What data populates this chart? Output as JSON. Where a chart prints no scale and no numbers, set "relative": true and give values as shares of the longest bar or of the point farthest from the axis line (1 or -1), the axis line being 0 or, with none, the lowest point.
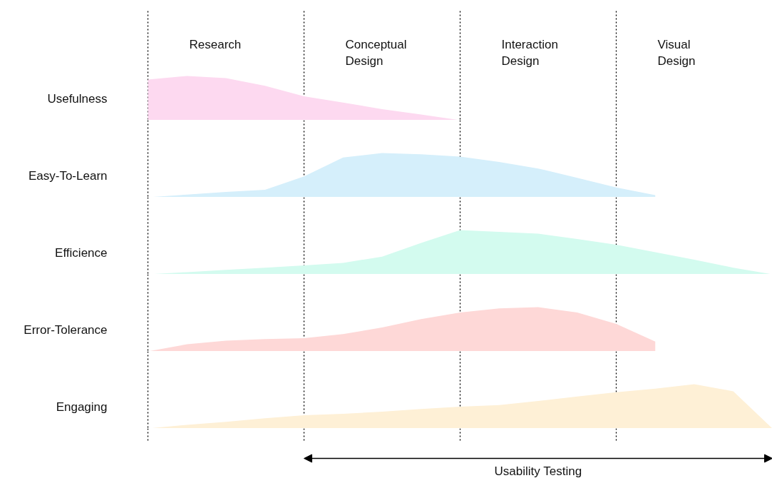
{
  "chart_data": [
    {
      "type": "area",
      "relative": true,
      "ylabel": "Usefulness",
      "grid": "x",
      "categories": [
        null,
        null,
        null,
        null,
        null,
        null,
        null,
        null,
        null,
        null,
        null,
        null,
        null,
        null,
        null,
        null,
        null
      ],
      "values": [
        0.92,
        1.0,
        0.95,
        0.78,
        0.54,
        0.4,
        0.25,
        0.13,
        0,
        null,
        null,
        null,
        null,
        null,
        null,
        null,
        null
      ],
      "color": "#fdd9f0",
      "annotations": [
        "Research",
        "Conceptual\nDesign",
        "Interaction\nDesign",
        "Visual\nDesign"
      ]
    },
    {
      "type": "area",
      "relative": true,
      "ylabel": "Easy-To-Learn",
      "grid": "x",
      "categories": [
        null,
        null,
        null,
        null,
        null,
        null,
        null,
        null,
        null,
        null,
        null,
        null,
        null,
        null,
        null,
        null,
        null
      ],
      "values": [
        0,
        0.06,
        0.12,
        0.17,
        0.47,
        0.9,
        1.0,
        0.97,
        0.92,
        0.8,
        0.65,
        0.44,
        0.22,
        0.05,
        null,
        null,
        null
      ],
      "color": "#d5effb"
    },
    {
      "type": "area",
      "relative": true,
      "ylabel": "Efficience",
      "grid": "x",
      "categories": [
        null,
        null,
        null,
        null,
        null,
        null,
        null,
        null,
        null,
        null,
        null,
        null,
        null,
        null,
        null,
        null,
        null
      ],
      "values": [
        0,
        0.05,
        0.1,
        0.15,
        0.2,
        0.26,
        0.4,
        0.71,
        1.0,
        0.96,
        0.92,
        0.8,
        0.67,
        0.5,
        0.33,
        0.15,
        0
      ],
      "color": "#d3fbef"
    },
    {
      "type": "area",
      "relative": true,
      "ylabel": "Error-Tolerance",
      "grid": "x",
      "categories": [
        null,
        null,
        null,
        null,
        null,
        null,
        null,
        null,
        null,
        null,
        null,
        null,
        null,
        null,
        null,
        null,
        null
      ],
      "values": [
        0,
        0.16,
        0.24,
        0.28,
        0.3,
        0.39,
        0.54,
        0.73,
        0.88,
        0.97,
        1.0,
        0.88,
        0.62,
        0.22,
        null,
        null,
        null
      ],
      "color": "#fed8d7"
    },
    {
      "type": "area",
      "relative": true,
      "ylabel": "Engaging",
      "grid": "x",
      "categories": [
        null,
        null,
        null,
        null,
        null,
        null,
        null,
        null,
        null,
        null,
        null,
        null,
        null,
        null,
        null,
        null,
        null
      ],
      "values": [
        0,
        0.08,
        0.15,
        0.23,
        0.3,
        0.33,
        0.38,
        0.44,
        0.49,
        0.53,
        0.62,
        0.72,
        0.82,
        0.9,
        1.0,
        0.84,
        0
      ],
      "color": "#fef0d6",
      "annotations": [
        "Usability Testing"
      ]
    }
  ]
}
